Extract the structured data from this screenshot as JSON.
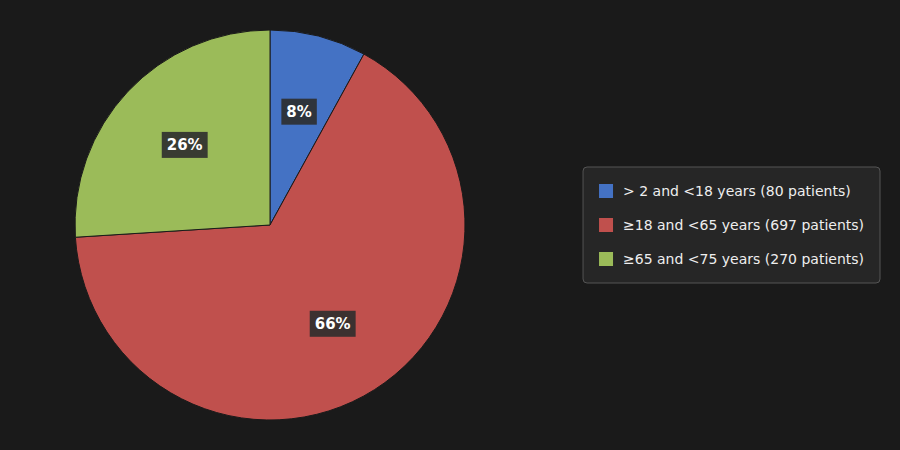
{
  "chart_data": {
    "type": "pie",
    "categories": [
      "> 2 and <18 years (80 patients)",
      "≥18 and <65 years (697 patients)",
      "≥65 and <75 years (270 patients)"
    ],
    "values": [
      8,
      66,
      26
    ],
    "value_labels": [
      "8%",
      "66%",
      "26%"
    ],
    "colors": [
      "#4472C4",
      "#C0504D",
      "#9BBB59"
    ],
    "data_labels": true,
    "legend": "right"
  }
}
